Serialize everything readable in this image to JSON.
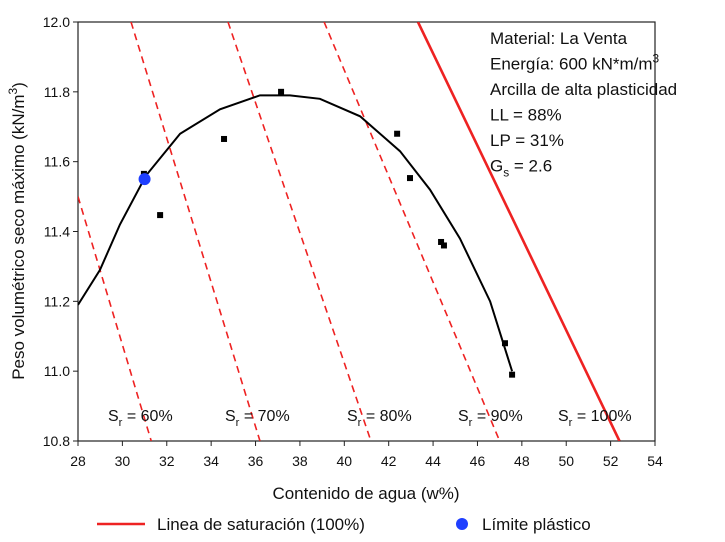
{
  "chart_data": {
    "type": "scatter",
    "xlabel": "Contenido de agua (w%)",
    "ylabel": {
      "main": "Peso volumétrico seco máximo (kN/m",
      "sup": "3",
      "tail": ")"
    },
    "xlim": [
      28,
      54
    ],
    "xticks": [
      28,
      30,
      32,
      34,
      36,
      38,
      40,
      42,
      44,
      46,
      48,
      50,
      52,
      54
    ],
    "ylim": [
      10.8,
      12.0
    ],
    "yticks": [
      10.8,
      {
        "value": 11,
        "label": "11.0"
      },
      11.2,
      11.4,
      11.6,
      11.8,
      {
        "value": 12,
        "label": "12.0"
      }
    ],
    "points": {
      "color": "#000000",
      "x": [
        30.97,
        31.7,
        34.58,
        37.15,
        42.38,
        42.96,
        44.36,
        44.49,
        47.24,
        47.56
      ],
      "y": [
        11.565,
        11.447,
        11.665,
        11.8,
        11.68,
        11.553,
        11.37,
        11.36,
        11.08,
        10.99
      ]
    },
    "fit": {
      "color": "#000000",
      "x": [
        28.0,
        28.99,
        29.89,
        31.06,
        32.6,
        34.4,
        36.2,
        37.55,
        38.9,
        40.71,
        42.51,
        43.86,
        45.21,
        46.57,
        47.56
      ],
      "y": [
        11.19,
        11.29,
        11.42,
        11.56,
        11.68,
        11.75,
        11.79,
        11.79,
        11.78,
        11.73,
        11.63,
        11.52,
        11.38,
        11.2,
        11.0
      ]
    },
    "saturation": [
      {
        "color": "#ee2222",
        "dashed": true,
        "x": [
          28,
          31.3
        ],
        "y": [
          11.5,
          10.8
        ],
        "label": {
          "main": "S",
          "sub": "r",
          "tail": " = 60%"
        }
      },
      {
        "color": "#ee2222",
        "dashed": true,
        "x": [
          30.39,
          36.2
        ],
        "y": [
          12.0,
          10.8
        ],
        "label": {
          "main": "S",
          "sub": "r",
          "tail": " = 70%"
        }
      },
      {
        "color": "#ee2222",
        "dashed": true,
        "x": [
          34.76,
          41.2
        ],
        "y": [
          12.0,
          10.8
        ],
        "label": {
          "main": "S",
          "sub": "r",
          "tail": " = 80%"
        }
      },
      {
        "color": "#ee2222",
        "dashed": true,
        "x": [
          39.09,
          47.0
        ],
        "y": [
          12.0,
          10.8
        ],
        "label": {
          "main": "S",
          "sub": "r",
          "tail": " = 90%"
        }
      },
      {
        "color": "#ee2222",
        "dashed": false,
        "name": "Linea de saturación (100%)",
        "x": [
          43.32,
          52.4
        ],
        "y": [
          12.0,
          10.8
        ],
        "label": {
          "main": "S",
          "sub": "r",
          "tail": " = 100%"
        }
      }
    ],
    "plastic_limit": {
      "name": "Límite plástico",
      "color": "#1f3fff",
      "x": [
        31.0
      ],
      "y": [
        11.55
      ]
    },
    "info": [
      {
        "main": "Material: La Venta"
      },
      {
        "main": "Energía: 600 kN*m/m",
        "sup": "3"
      },
      {
        "main": "Arcilla de alta plasticidad"
      },
      {
        "main": "LL = 88%"
      },
      {
        "main": "LP = 31%"
      },
      {
        "main": "G",
        "sub": "s",
        "tail": " = 2.6"
      }
    ]
  }
}
